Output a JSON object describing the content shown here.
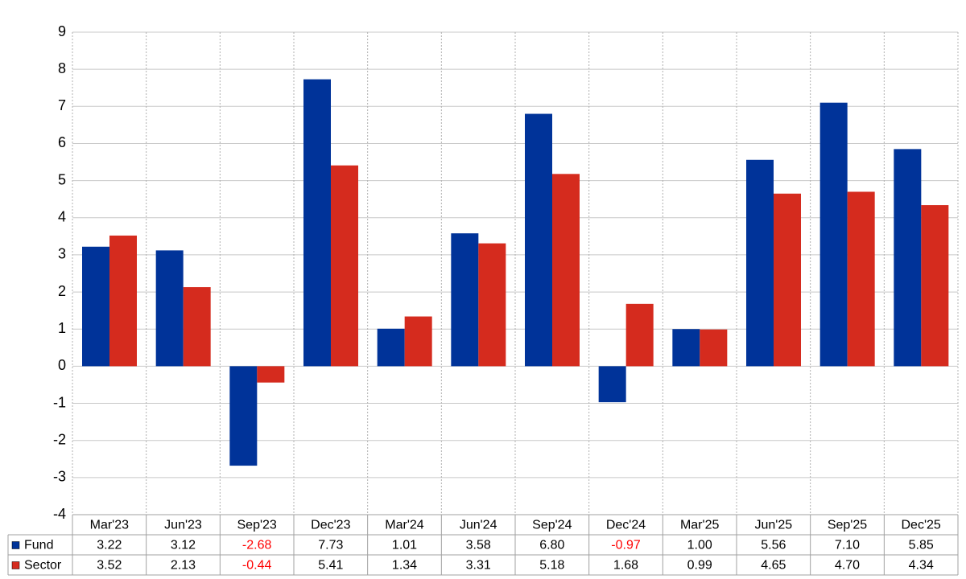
{
  "chart_data": {
    "type": "bar",
    "categories": [
      "Mar'23",
      "Jun'23",
      "Sep'23",
      "Dec'23",
      "Mar'24",
      "Jun'24",
      "Sep'24",
      "Dec'24",
      "Mar'25",
      "Jun'25",
      "Sep'25",
      "Dec'25"
    ],
    "series": [
      {
        "name": "Fund",
        "color": "#003399",
        "values": [
          3.22,
          3.12,
          -2.68,
          7.73,
          1.01,
          3.58,
          6.8,
          -0.97,
          1.0,
          5.56,
          7.1,
          5.85
        ],
        "value_labels": [
          "3.22",
          "3.12",
          "-2.68",
          "7.73",
          "1.01",
          "3.58",
          "6.80",
          "-0.97",
          "1.00",
          "5.56",
          "7.10",
          "5.85"
        ]
      },
      {
        "name": "Sector",
        "color": "#d52b1e",
        "values": [
          3.52,
          2.13,
          -0.44,
          5.41,
          1.34,
          3.31,
          5.18,
          1.68,
          0.99,
          4.65,
          4.7,
          4.34
        ],
        "value_labels": [
          "3.52",
          "2.13",
          "-0.44",
          "5.41",
          "1.34",
          "3.31",
          "5.18",
          "1.68",
          "0.99",
          "4.65",
          "4.70",
          "4.34"
        ]
      }
    ],
    "ylim": [
      -4,
      9
    ],
    "yticks": [
      -4,
      -3,
      -2,
      -1,
      0,
      1,
      2,
      3,
      4,
      5,
      6,
      7,
      8,
      9
    ],
    "grid": true,
    "negative_label_color": "#ff0000"
  }
}
